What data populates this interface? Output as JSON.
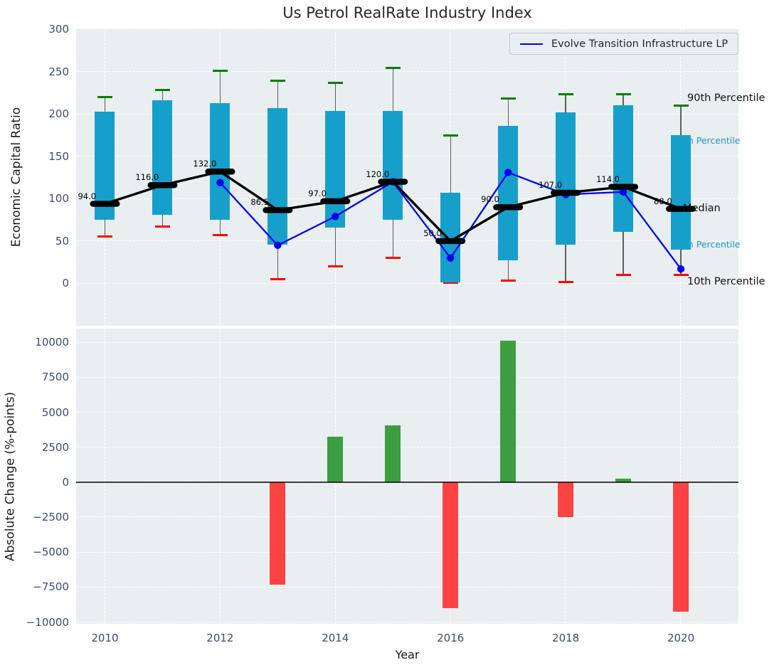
{
  "title": "Us Petrol RealRate Industry Index",
  "colors": {
    "box": "#179fcb",
    "whisker": "#5f5f5f",
    "cap_high": "#007d00",
    "cap_low": "#ff0000",
    "median_line": "#000000",
    "series_line": "#0000ee",
    "bar_positive": "#3d9e41",
    "bar_negative": "#fb4343",
    "axes_bg": "#e9eef0",
    "grid": "#ffffff",
    "tick_label": "#3e4d66",
    "annotation_cyan": "#1b97c1"
  },
  "chart_data": [
    {
      "type": "boxplot",
      "title": "Us Petrol RealRate Industry Index",
      "ylabel": "Economic Capital Ratio",
      "ylim": [
        -50,
        301
      ],
      "yticks": [
        300,
        250,
        200,
        150,
        100,
        50,
        0
      ],
      "ytick_labels": [
        "300",
        "250",
        "200",
        "150",
        "100",
        "50",
        "0"
      ],
      "xlim": [
        2009.5,
        2021
      ],
      "grid": true,
      "legend_position": "upper right",
      "years": [
        2010,
        2011,
        2012,
        2013,
        2014,
        2015,
        2016,
        2017,
        2018,
        2019,
        2020
      ],
      "p90": [
        220,
        228,
        251,
        239,
        237,
        254,
        175,
        218,
        223,
        223,
        210
      ],
      "p70": [
        203,
        216,
        213,
        207,
        204,
        204,
        107,
        186,
        202,
        210,
        175
      ],
      "median": [
        94,
        116,
        132,
        86.5,
        97,
        120,
        50,
        90,
        107,
        114,
        88
      ],
      "median_labels": [
        "94.0",
        "116.0",
        "132.0",
        "86.5",
        "97.0",
        "120.0",
        "50.0",
        "90.0",
        "107.0",
        "114.0",
        "88.0"
      ],
      "p30": [
        75,
        81,
        75,
        46,
        66,
        75,
        1,
        27,
        46,
        61,
        40
      ],
      "p10": [
        55,
        67,
        57,
        5,
        20,
        30,
        0.5,
        3,
        2,
        10,
        10
      ],
      "series": {
        "name": "Evolve Transition Infrastructure LP",
        "years": [
          2012,
          2013,
          2014,
          2015,
          2016,
          2017,
          2018,
          2019,
          2020
        ],
        "values": [
          119,
          45,
          79,
          120,
          30,
          131,
          105,
          108,
          17
        ]
      },
      "right_labels": {
        "p90": "90th Percentile",
        "p70": "70th Percentile",
        "median": "Median",
        "p30": "30th Percentile",
        "p10": "10th Percentile"
      }
    },
    {
      "type": "bar",
      "ylabel": "Absolute Change (%-points)",
      "xlabel": "Year",
      "ylim": [
        -10120,
        10980
      ],
      "yticks": [
        10000,
        7500,
        5000,
        2500,
        0,
        -2500,
        -5000,
        -7500,
        -10000
      ],
      "ytick_labels": [
        "10000",
        "7500",
        "5000",
        "2500",
        "0",
        "−2500",
        "−5000",
        "−7500",
        "−10000"
      ],
      "xticks": [
        2010,
        2012,
        2014,
        2016,
        2018,
        2020
      ],
      "xtick_labels": [
        "2010",
        "2012",
        "2014",
        "2016",
        "2018",
        "2020"
      ],
      "grid": true,
      "categories": [
        2013,
        2014,
        2015,
        2016,
        2017,
        2018,
        2019,
        2020
      ],
      "values": [
        -7300,
        3250,
        4050,
        -9000,
        10100,
        -2475,
        270,
        -9250
      ]
    }
  ]
}
